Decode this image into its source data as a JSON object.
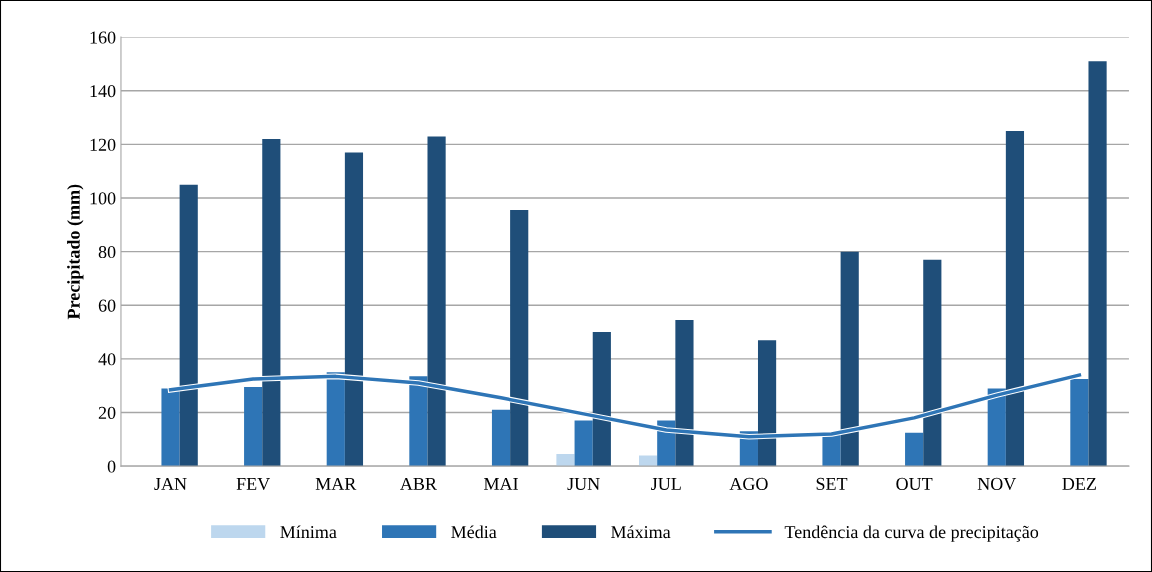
{
  "chart_data": {
    "type": "bar",
    "ylabel": "Precipitado (mm)",
    "categories": [
      "JAN",
      "FEV",
      "MAR",
      "ABR",
      "MAI",
      "JUN",
      "JUL",
      "AGO",
      "SET",
      "OUT",
      "NOV",
      "DEZ"
    ],
    "series": [
      {
        "name": "Mínima",
        "color": "#bdd7ee",
        "values": [
          0,
          0,
          0,
          0,
          0,
          4.5,
          4,
          0,
          0,
          0,
          0,
          0
        ]
      },
      {
        "name": "Média",
        "color": "#2e75b6",
        "values": [
          29,
          29.5,
          35,
          33.5,
          21,
          17,
          17,
          13,
          12.5,
          12.5,
          29,
          32.5
        ]
      },
      {
        "name": "Máxima",
        "color": "#1f4e79",
        "values": [
          105,
          122,
          117,
          123,
          95.5,
          50,
          54.5,
          47,
          80,
          77,
          125,
          151
        ]
      },
      {
        "name": "Tendência da curva de precipitação",
        "type": "line",
        "color": "#2e75b6",
        "values": [
          28.5,
          32.5,
          33.5,
          31,
          25.5,
          19.5,
          13.5,
          11,
          12,
          18,
          26.5,
          34
        ]
      }
    ],
    "ylim": [
      0,
      160
    ],
    "yticks": [
      0,
      20,
      40,
      60,
      80,
      100,
      120,
      140,
      160
    ],
    "grid": "y",
    "legend": "bottom"
  }
}
